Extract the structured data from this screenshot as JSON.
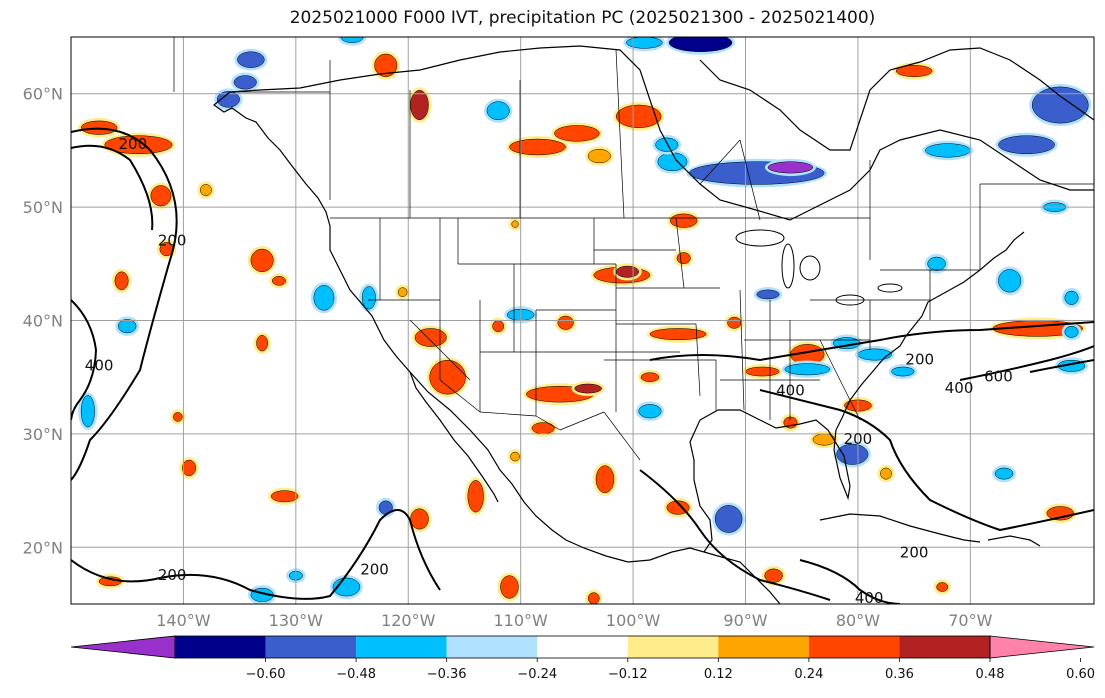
{
  "title": "2025021000 F000 IVT, precipitation PC (2025021300 - 2025021400)",
  "map": {
    "lon_range": [
      -150,
      -59
    ],
    "lat_range": [
      15,
      65
    ],
    "lat_ticks": [
      {
        "value": 20,
        "label": "20°N"
      },
      {
        "value": 30,
        "label": "30°N"
      },
      {
        "value": 40,
        "label": "40°N"
      },
      {
        "value": 50,
        "label": "50°N"
      },
      {
        "value": 60,
        "label": "60°N"
      }
    ],
    "lon_ticks": [
      {
        "value": -140,
        "label": "140°W"
      },
      {
        "value": -130,
        "label": "130°W"
      },
      {
        "value": -120,
        "label": "120°W"
      },
      {
        "value": -110,
        "label": "110°W"
      },
      {
        "value": -100,
        "label": "100°W"
      },
      {
        "value": -90,
        "label": "90°W"
      },
      {
        "value": -80,
        "label": "80°W"
      },
      {
        "value": -70,
        "label": "70°W"
      }
    ],
    "ivt_contour_labels": [
      {
        "text": "200",
        "lon": -144.5,
        "lat": 55.5
      },
      {
        "text": "200",
        "lon": -141,
        "lat": 47
      },
      {
        "text": "400",
        "lon": -147.5,
        "lat": 36
      },
      {
        "text": "200",
        "lon": -141,
        "lat": 17.5
      },
      {
        "text": "200",
        "lon": -123,
        "lat": 18
      },
      {
        "text": "200",
        "lon": -74.5,
        "lat": 36.5
      },
      {
        "text": "400",
        "lon": -71,
        "lat": 34
      },
      {
        "text": "600",
        "lon": -67.5,
        "lat": 35
      },
      {
        "text": "400",
        "lon": -86,
        "lat": 33.8
      },
      {
        "text": "200",
        "lon": -80,
        "lat": 29.5
      },
      {
        "text": "200",
        "lon": -75,
        "lat": 19.5
      },
      {
        "text": "400",
        "lon": -79,
        "lat": 15.5
      }
    ]
  },
  "colorbar": {
    "colors": [
      "#9932cc",
      "#00008b",
      "#3a5fcd",
      "#00bfff",
      "#b0e2ff",
      "#ffffff",
      "#ffec8b",
      "#ffa500",
      "#ff4500",
      "#b22222",
      "#ff82ab"
    ],
    "tick_labels": [
      "−0.60",
      "−0.48",
      "−0.36",
      "−0.24",
      "−0.12",
      "0.12",
      "0.24",
      "0.36",
      "0.48",
      "0.60"
    ]
  },
  "precip_blobs": [
    {
      "lon": -134,
      "lat": 63,
      "rx": 1.2,
      "ry": 0.7,
      "v": -0.4
    },
    {
      "lon": -125,
      "lat": 65,
      "rx": 1.0,
      "ry": 0.5,
      "v": -0.3
    },
    {
      "lon": -99,
      "lat": 64.5,
      "rx": 1.6,
      "ry": 0.5,
      "v": -0.35
    },
    {
      "lon": -94,
      "lat": 64.5,
      "rx": 2.8,
      "ry": 0.8,
      "v": -0.5
    },
    {
      "lon": -134.5,
      "lat": 61,
      "rx": 1.0,
      "ry": 0.6,
      "v": -0.45
    },
    {
      "lon": -136,
      "lat": 59.5,
      "rx": 1.0,
      "ry": 0.7,
      "v": -0.4
    },
    {
      "lon": -122,
      "lat": 62.5,
      "rx": 1.0,
      "ry": 1.0,
      "v": 0.4
    },
    {
      "lon": -119,
      "lat": 59,
      "rx": 0.8,
      "ry": 1.3,
      "v": 0.55
    },
    {
      "lon": -144,
      "lat": 55.5,
      "rx": 3.0,
      "ry": 0.8,
      "v": 0.42
    },
    {
      "lon": -147.5,
      "lat": 57,
      "rx": 1.6,
      "ry": 0.6,
      "v": 0.38
    },
    {
      "lon": -142,
      "lat": 51,
      "rx": 0.9,
      "ry": 0.9,
      "v": 0.38
    },
    {
      "lon": -105,
      "lat": 56.5,
      "rx": 2.0,
      "ry": 0.7,
      "v": 0.4
    },
    {
      "lon": -99.5,
      "lat": 58,
      "rx": 2.0,
      "ry": 1.0,
      "v": 0.38
    },
    {
      "lon": -108.5,
      "lat": 55.3,
      "rx": 2.5,
      "ry": 0.7,
      "v": 0.38
    },
    {
      "lon": -103,
      "lat": 54.5,
      "rx": 1.0,
      "ry": 0.6,
      "v": 0.35
    },
    {
      "lon": -112,
      "lat": 58.5,
      "rx": 1.0,
      "ry": 0.8,
      "v": -0.3
    },
    {
      "lon": -89,
      "lat": 53,
      "rx": 6.0,
      "ry": 1.0,
      "v": -0.45
    },
    {
      "lon": -86,
      "lat": 53.5,
      "rx": 2.0,
      "ry": 0.5,
      "v": -0.62
    },
    {
      "lon": -96.5,
      "lat": 54,
      "rx": 1.3,
      "ry": 0.8,
      "v": -0.35
    },
    {
      "lon": -65,
      "lat": 55.5,
      "rx": 2.5,
      "ry": 0.8,
      "v": -0.45
    },
    {
      "lon": -72,
      "lat": 55,
      "rx": 2.0,
      "ry": 0.6,
      "v": -0.35
    },
    {
      "lon": -62,
      "lat": 59,
      "rx": 2.5,
      "ry": 1.6,
      "v": -0.4
    },
    {
      "lon": -75,
      "lat": 62,
      "rx": 1.6,
      "ry": 0.5,
      "v": 0.38
    },
    {
      "lon": -97,
      "lat": 55.5,
      "rx": 1.0,
      "ry": 0.6,
      "v": -0.25
    },
    {
      "lon": -133,
      "lat": 45.3,
      "rx": 1.0,
      "ry": 1.0,
      "v": 0.42
    },
    {
      "lon": -141.5,
      "lat": 46.3,
      "rx": 0.6,
      "ry": 0.6,
      "v": 0.4
    },
    {
      "lon": -138,
      "lat": 51.5,
      "rx": 0.5,
      "ry": 0.5,
      "v": 0.3
    },
    {
      "lon": -145.5,
      "lat": 43.5,
      "rx": 0.6,
      "ry": 0.8,
      "v": 0.4
    },
    {
      "lon": -131.5,
      "lat": 43.5,
      "rx": 0.6,
      "ry": 0.4,
      "v": 0.38
    },
    {
      "lon": -120.5,
      "lat": 42.5,
      "rx": 0.4,
      "ry": 0.4,
      "v": 0.3
    },
    {
      "lon": -123.5,
      "lat": 42,
      "rx": 0.6,
      "ry": 1.0,
      "v": -0.32
    },
    {
      "lon": -127.5,
      "lat": 42,
      "rx": 0.9,
      "ry": 1.1,
      "v": -0.3
    },
    {
      "lon": -133,
      "lat": 38,
      "rx": 0.5,
      "ry": 0.7,
      "v": 0.42
    },
    {
      "lon": -118,
      "lat": 38.5,
      "rx": 1.4,
      "ry": 0.8,
      "v": 0.42
    },
    {
      "lon": -116.5,
      "lat": 35,
      "rx": 1.6,
      "ry": 1.5,
      "v": 0.42
    },
    {
      "lon": -112,
      "lat": 39.5,
      "rx": 0.5,
      "ry": 0.5,
      "v": 0.42
    },
    {
      "lon": -106,
      "lat": 39.8,
      "rx": 0.7,
      "ry": 0.6,
      "v": 0.42
    },
    {
      "lon": -110,
      "lat": 40.5,
      "rx": 1.2,
      "ry": 0.5,
      "v": -0.3
    },
    {
      "lon": -106.5,
      "lat": 33.5,
      "rx": 3.0,
      "ry": 0.7,
      "v": 0.42
    },
    {
      "lon": -104,
      "lat": 34,
      "rx": 1.2,
      "ry": 0.4,
      "v": 0.48
    },
    {
      "lon": -98.5,
      "lat": 35,
      "rx": 0.8,
      "ry": 0.4,
      "v": 0.42
    },
    {
      "lon": -98.5,
      "lat": 32,
      "rx": 1.0,
      "ry": 0.6,
      "v": -0.35
    },
    {
      "lon": -101,
      "lat": 44,
      "rx": 2.5,
      "ry": 0.7,
      "v": 0.42
    },
    {
      "lon": -100.5,
      "lat": 44.3,
      "rx": 1.0,
      "ry": 0.5,
      "v": 0.5
    },
    {
      "lon": -95.5,
      "lat": 45.5,
      "rx": 0.6,
      "ry": 0.5,
      "v": 0.38
    },
    {
      "lon": -95.5,
      "lat": 48.8,
      "rx": 1.2,
      "ry": 0.6,
      "v": 0.42
    },
    {
      "lon": -110.5,
      "lat": 48.5,
      "rx": 0.3,
      "ry": 0.3,
      "v": 0.3
    },
    {
      "lon": -96,
      "lat": 38.8,
      "rx": 2.5,
      "ry": 0.5,
      "v": 0.38
    },
    {
      "lon": -91,
      "lat": 39.8,
      "rx": 0.6,
      "ry": 0.5,
      "v": 0.38
    },
    {
      "lon": -88,
      "lat": 42.3,
      "rx": 1.0,
      "ry": 0.4,
      "v": -0.4
    },
    {
      "lon": -84.5,
      "lat": 37,
      "rx": 1.5,
      "ry": 0.9,
      "v": 0.42
    },
    {
      "lon": -81,
      "lat": 38,
      "rx": 1.2,
      "ry": 0.5,
      "v": -0.35
    },
    {
      "lon": -78.5,
      "lat": 37,
      "rx": 1.5,
      "ry": 0.5,
      "v": -0.3
    },
    {
      "lon": -76,
      "lat": 35.5,
      "rx": 1.0,
      "ry": 0.4,
      "v": -0.28
    },
    {
      "lon": -84.5,
      "lat": 35.7,
      "rx": 2.0,
      "ry": 0.5,
      "v": -0.35
    },
    {
      "lon": -88.5,
      "lat": 35.5,
      "rx": 1.5,
      "ry": 0.4,
      "v": 0.38
    },
    {
      "lon": -80,
      "lat": 32.5,
      "rx": 1.2,
      "ry": 0.5,
      "v": 0.4
    },
    {
      "lon": -83,
      "lat": 29.5,
      "rx": 1.0,
      "ry": 0.5,
      "v": 0.35
    },
    {
      "lon": -80.5,
      "lat": 28.2,
      "rx": 1.4,
      "ry": 0.9,
      "v": -0.4
    },
    {
      "lon": -64,
      "lat": 39.3,
      "rx": 4.0,
      "ry": 0.7,
      "v": 0.42
    },
    {
      "lon": -61,
      "lat": 36,
      "rx": 1.2,
      "ry": 0.5,
      "v": -0.35
    },
    {
      "lon": -61,
      "lat": 39,
      "rx": 0.6,
      "ry": 0.5,
      "v": -0.35
    },
    {
      "lon": -66.5,
      "lat": 43.5,
      "rx": 1.0,
      "ry": 1.0,
      "v": -0.3
    },
    {
      "lon": -61,
      "lat": 42,
      "rx": 0.6,
      "ry": 0.6,
      "v": -0.25
    },
    {
      "lon": -62.5,
      "lat": 50,
      "rx": 1.0,
      "ry": 0.4,
      "v": -0.32
    },
    {
      "lon": -73,
      "lat": 45,
      "rx": 0.8,
      "ry": 0.6,
      "v": -0.3
    },
    {
      "lon": -148.5,
      "lat": 32,
      "rx": 0.6,
      "ry": 1.4,
      "v": -0.35
    },
    {
      "lon": -139.5,
      "lat": 27,
      "rx": 0.6,
      "ry": 0.7,
      "v": 0.42
    },
    {
      "lon": -131,
      "lat": 24.5,
      "rx": 1.2,
      "ry": 0.5,
      "v": 0.42
    },
    {
      "lon": -122,
      "lat": 23.5,
      "rx": 0.6,
      "ry": 0.6,
      "v": -0.4
    },
    {
      "lon": -119,
      "lat": 22.5,
      "rx": 0.8,
      "ry": 0.9,
      "v": 0.42
    },
    {
      "lon": -114,
      "lat": 24.5,
      "rx": 0.7,
      "ry": 1.4,
      "v": 0.45
    },
    {
      "lon": -108,
      "lat": 30.5,
      "rx": 1.0,
      "ry": 0.5,
      "v": 0.38
    },
    {
      "lon": -110.5,
      "lat": 28,
      "rx": 0.4,
      "ry": 0.4,
      "v": 0.35
    },
    {
      "lon": -102.5,
      "lat": 26,
      "rx": 0.8,
      "ry": 1.2,
      "v": 0.42
    },
    {
      "lon": -96,
      "lat": 23.5,
      "rx": 1.0,
      "ry": 0.6,
      "v": 0.42
    },
    {
      "lon": -91.5,
      "lat": 22.5,
      "rx": 1.2,
      "ry": 1.2,
      "v": -0.42
    },
    {
      "lon": -111,
      "lat": 16.5,
      "rx": 0.8,
      "ry": 1.0,
      "v": 0.42
    },
    {
      "lon": -125.5,
      "lat": 16.5,
      "rx": 1.2,
      "ry": 0.8,
      "v": -0.35
    },
    {
      "lon": -133,
      "lat": 15.8,
      "rx": 1.0,
      "ry": 0.6,
      "v": -0.3
    },
    {
      "lon": -130,
      "lat": 17.5,
      "rx": 0.6,
      "ry": 0.4,
      "v": -0.3
    },
    {
      "lon": -87.5,
      "lat": 17.5,
      "rx": 0.8,
      "ry": 0.6,
      "v": 0.42
    },
    {
      "lon": -62,
      "lat": 23,
      "rx": 1.2,
      "ry": 0.6,
      "v": 0.38
    },
    {
      "lon": -77.5,
      "lat": 26.5,
      "rx": 0.5,
      "ry": 0.5,
      "v": 0.35
    },
    {
      "lon": -67,
      "lat": 26.5,
      "rx": 0.8,
      "ry": 0.5,
      "v": -0.3
    },
    {
      "lon": -72.5,
      "lat": 16.5,
      "rx": 0.5,
      "ry": 0.4,
      "v": 0.38
    },
    {
      "lon": -103.5,
      "lat": 15.5,
      "rx": 0.5,
      "ry": 0.5,
      "v": 0.38
    },
    {
      "lon": -145,
      "lat": 39.5,
      "rx": 0.8,
      "ry": 0.6,
      "v": -0.3
    },
    {
      "lon": -86,
      "lat": 31,
      "rx": 0.6,
      "ry": 0.5,
      "v": 0.38
    },
    {
      "lon": -146.5,
      "lat": 17,
      "rx": 1.0,
      "ry": 0.4,
      "v": 0.38
    },
    {
      "lon": -140.5,
      "lat": 31.5,
      "rx": 0.4,
      "ry": 0.4,
      "v": 0.4
    }
  ]
}
